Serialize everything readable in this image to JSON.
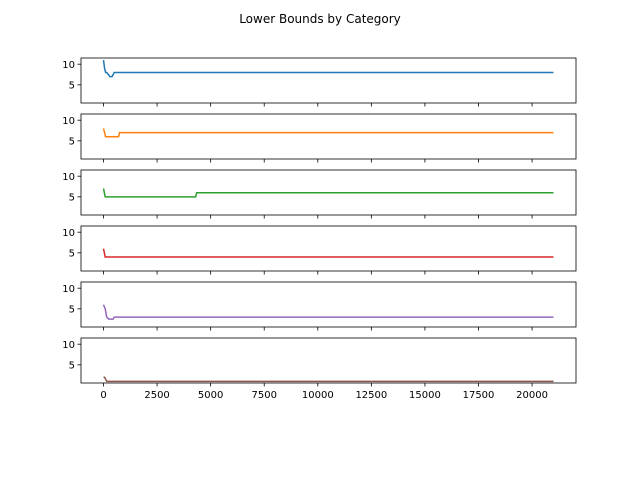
{
  "chart_data": {
    "type": "line",
    "title": "Lower Bounds by Category",
    "xlabel": "",
    "ylabel": "",
    "xlim": [
      -1050,
      22050
    ],
    "ylim": [
      0.6,
      11.5
    ],
    "x_ticks": [
      0,
      2500,
      5000,
      7500,
      10000,
      12500,
      15000,
      17500,
      20000
    ],
    "x_tick_labels": [
      "0",
      "2500",
      "5000",
      "7500",
      "10000",
      "12500",
      "15000",
      "17500",
      "20000"
    ],
    "y_ticks": [
      5,
      10
    ],
    "y_tick_labels": [
      "5",
      "10"
    ],
    "grid": false,
    "legend": false,
    "series": [
      {
        "color": "#1f77b4",
        "points": [
          [
            0,
            11
          ],
          [
            50,
            9
          ],
          [
            100,
            8
          ],
          [
            150,
            8
          ],
          [
            300,
            7
          ],
          [
            400,
            7
          ],
          [
            500,
            8
          ],
          [
            21000,
            8
          ]
        ]
      },
      {
        "color": "#ff7f0e",
        "points": [
          [
            0,
            8
          ],
          [
            100,
            6
          ],
          [
            500,
            6
          ],
          [
            700,
            6
          ],
          [
            750,
            7
          ],
          [
            21000,
            7
          ]
        ]
      },
      {
        "color": "#2ca02c",
        "points": [
          [
            0,
            7
          ],
          [
            80,
            5
          ],
          [
            4300,
            5
          ],
          [
            4350,
            6
          ],
          [
            21000,
            6
          ]
        ]
      },
      {
        "color": "#d62728",
        "points": [
          [
            0,
            6
          ],
          [
            80,
            4
          ],
          [
            21000,
            4
          ]
        ]
      },
      {
        "color": "#9467bd",
        "points": [
          [
            0,
            6
          ],
          [
            80,
            5
          ],
          [
            150,
            3
          ],
          [
            250,
            2.5
          ],
          [
            450,
            2.5
          ],
          [
            500,
            3
          ],
          [
            21000,
            3
          ]
        ]
      },
      {
        "color": "#8c564b",
        "points": [
          [
            0,
            2
          ],
          [
            50,
            2
          ],
          [
            100,
            1.5
          ],
          [
            150,
            1
          ],
          [
            21000,
            1
          ]
        ]
      }
    ]
  }
}
